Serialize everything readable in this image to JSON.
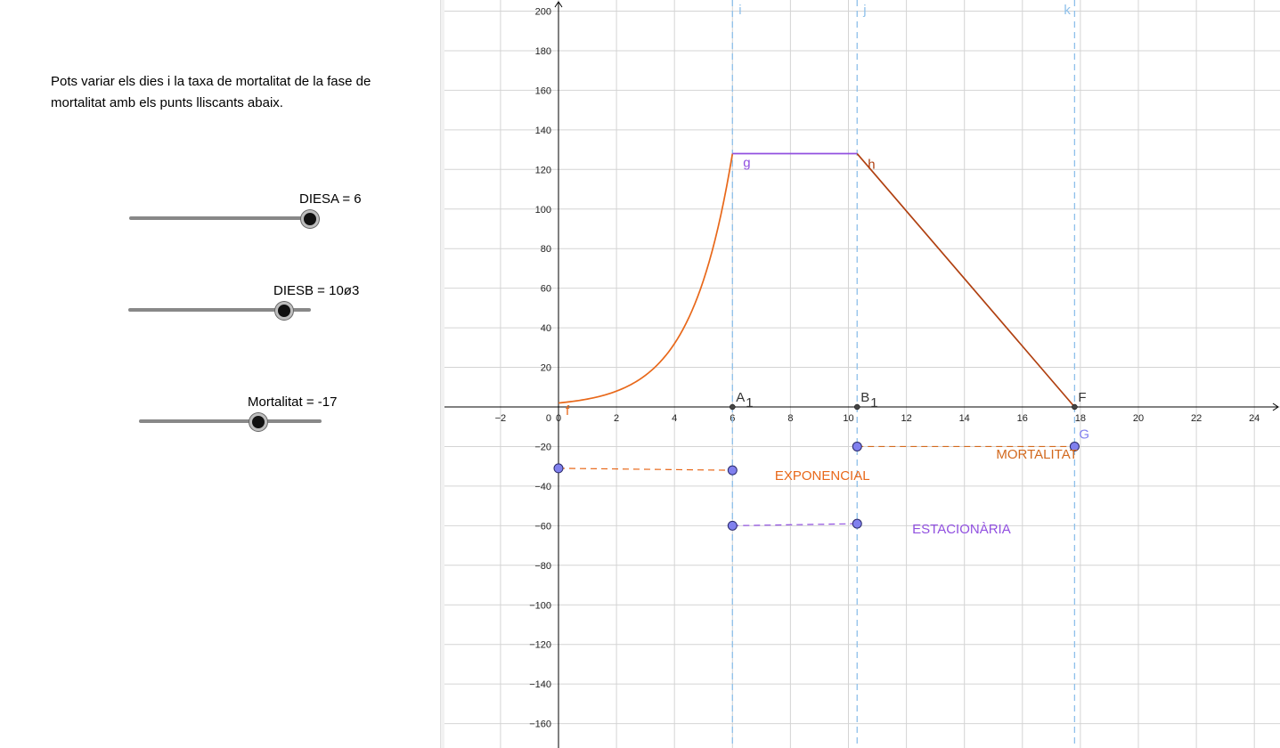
{
  "intro_text": "Pots variar els dies i la taxa de mortalitat de la fase de mortalitat amb els punts lliscants abaix.",
  "sliders": [
    {
      "name": "DIESA",
      "label": "DIESA = 6",
      "fraction": 1.0
    },
    {
      "name": "DIESB",
      "label": "DIESB = 10ø3",
      "fraction": 0.85
    },
    {
      "name": "Mortalitat",
      "label": "Mortalitat = -17",
      "fraction": 0.65
    }
  ],
  "colors": {
    "exponential": "#e8681a",
    "stationary": "#9150e0",
    "mortality": "#b04010",
    "mortality_text": "#d2691e",
    "vline": "#8ec0ea",
    "point": "#8080ee",
    "grid": "#d4d4d4"
  },
  "chart_data": {
    "type": "line",
    "xlim": [
      -4,
      25
    ],
    "ylim": [
      -170,
      200
    ],
    "xticks": [
      -2,
      0,
      2,
      4,
      6,
      8,
      10,
      12,
      14,
      16,
      18,
      20,
      22,
      24
    ],
    "yticks": [
      -160,
      -140,
      -120,
      -100,
      -80,
      -60,
      -40,
      -20,
      20,
      40,
      60,
      80,
      100,
      120,
      140,
      160,
      180,
      200
    ],
    "tick_labels_y": [
      "−160",
      "−140",
      "−120",
      "−100",
      "−80",
      "−60",
      "−40",
      "−20",
      "20",
      "40",
      "60",
      "80",
      "100",
      "120",
      "140",
      "160",
      "180",
      "200"
    ],
    "tick_labels_x": [
      "−2",
      "0",
      "2",
      "4",
      "6",
      "8",
      "10",
      "12",
      "14",
      "16",
      "18",
      "20",
      "22",
      "24"
    ],
    "origin_label": "0",
    "grid": true,
    "curves": [
      {
        "name": "f",
        "kind": "exponential",
        "x_from": 0,
        "x_to": 6,
        "y0": 2,
        "y1": 128
      },
      {
        "name": "g",
        "kind": "segment",
        "points": [
          [
            6,
            128
          ],
          [
            10.3,
            128
          ]
        ]
      },
      {
        "name": "h",
        "kind": "segment",
        "points": [
          [
            10.3,
            128
          ],
          [
            17.8,
            0
          ]
        ]
      }
    ],
    "vertical_lines": [
      {
        "name": "i",
        "x": 6
      },
      {
        "name": "j",
        "x": 10.3
      },
      {
        "name": "k",
        "x": 17.8
      }
    ],
    "axis_points": [
      {
        "name": "A",
        "sub": "1",
        "x": 6,
        "y": 0
      },
      {
        "name": "B",
        "sub": "1",
        "x": 10.3,
        "y": 0
      },
      {
        "name": "F",
        "sub": "",
        "x": 17.8,
        "y": 0
      }
    ],
    "phases": [
      {
        "label": "EXPONENCIAL",
        "p1": [
          0,
          -31
        ],
        "p2": [
          6,
          -32
        ],
        "label_at": [
          9.1,
          -37
        ]
      },
      {
        "label": "ESTACIONÀRIA",
        "p1": [
          6,
          -60
        ],
        "p2": [
          10.3,
          -59
        ],
        "label_at": [
          13.9,
          -64
        ]
      },
      {
        "label": "MORTALITAT",
        "p1": [
          10.3,
          -20
        ],
        "p2": [
          17.8,
          -20
        ],
        "label_at": [
          16.5,
          -26
        ]
      }
    ],
    "point_labels": [
      {
        "text": "G",
        "at": [
          17.8,
          -20
        ]
      }
    ]
  }
}
